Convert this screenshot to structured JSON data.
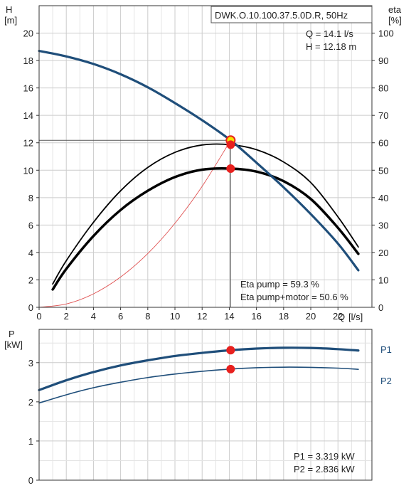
{
  "chart_data": [
    {
      "type": "line",
      "model_label": "DWK.O.10.100.37.5.0D.R, 50Hz",
      "operating_point": {
        "q_text": "Q = 14.1 l/s",
        "h_text": "H = 12.18 m",
        "q": 14.1,
        "h": 12.18
      },
      "efficiency_text": {
        "pump": "Eta pump = 59.3 %",
        "pump_motor": "Eta pump+motor = 50.6 %"
      },
      "xlabel": "Q",
      "xunit": "[l/s]",
      "ylabel": "H",
      "yunit": "[m]",
      "y2label": "eta",
      "y2unit": "[%]",
      "xlim": [
        0,
        24.5
      ],
      "ylim": [
        0,
        22
      ],
      "y2lim": [
        0,
        110
      ],
      "x_ticks": [
        0,
        2,
        4,
        6,
        8,
        10,
        12,
        14,
        16,
        18,
        20,
        22
      ],
      "y_ticks": [
        0,
        2,
        4,
        6,
        8,
        10,
        12,
        14,
        16,
        18,
        20
      ],
      "y2_ticks": [
        0,
        10,
        20,
        30,
        40,
        50,
        60,
        70,
        80,
        90,
        100
      ],
      "grid": true,
      "series": [
        {
          "key": "head",
          "axis": "left",
          "color": "#1f4e7a",
          "x": [
            0,
            2,
            4,
            6,
            8,
            10,
            12,
            14.1,
            16,
            18,
            20,
            22,
            23.5
          ],
          "y": [
            18.7,
            18.3,
            17.75,
            17.0,
            16.05,
            14.9,
            13.65,
            12.18,
            10.55,
            8.75,
            6.8,
            4.65,
            2.7
          ]
        },
        {
          "key": "eta_pump",
          "axis": "right",
          "color": "#000000",
          "x": [
            1,
            2,
            4,
            6,
            8,
            10,
            12,
            14.1,
            16,
            18,
            20,
            22,
            23.5
          ],
          "y": [
            8.5,
            17,
            31,
            42.5,
            51,
            56.5,
            59.2,
            59.3,
            57.5,
            53,
            45.5,
            33,
            22
          ]
        },
        {
          "key": "eta_pump_motor",
          "axis": "right",
          "color": "#000000",
          "x": [
            1,
            2,
            4,
            6,
            8,
            10,
            12,
            14.1,
            16,
            18,
            20,
            22,
            23.5
          ],
          "y": [
            6.5,
            14,
            26,
            35.5,
            42.5,
            47.5,
            50.2,
            50.6,
            49.5,
            46,
            39.5,
            29,
            19.5
          ]
        },
        {
          "key": "system_curve",
          "axis": "left",
          "color": "#e05050",
          "x": [
            0,
            2,
            4,
            6,
            8,
            10,
            12,
            14.1
          ],
          "y": [
            0,
            0.24,
            0.98,
            2.21,
            3.92,
            6.13,
            8.82,
            12.18
          ]
        }
      ],
      "markers": [
        {
          "series": "head",
          "x": 14.1,
          "y": 12.18,
          "style": "yellow"
        },
        {
          "series": "eta_pump",
          "x": 14.1,
          "y": 59.3,
          "style": "red"
        },
        {
          "series": "eta_pump_motor",
          "x": 14.1,
          "y": 50.6,
          "style": "red"
        }
      ]
    },
    {
      "type": "line",
      "ylabel": "P",
      "yunit": "[kW]",
      "xlim": [
        0,
        24.5
      ],
      "ylim": [
        0,
        3.85
      ],
      "y_ticks": [
        0,
        1,
        2,
        3
      ],
      "grid": true,
      "series": [
        {
          "name": "P1",
          "color": "#1f4e7a",
          "x": [
            0,
            2,
            4,
            6,
            8,
            10,
            12,
            14.1,
            16,
            18,
            20,
            22,
            23.5
          ],
          "y": [
            2.3,
            2.55,
            2.76,
            2.93,
            3.06,
            3.17,
            3.25,
            3.319,
            3.36,
            3.38,
            3.375,
            3.345,
            3.31
          ]
        },
        {
          "name": "P2",
          "color": "#1f4e7a",
          "x": [
            0,
            2,
            4,
            6,
            8,
            10,
            12,
            14.1,
            16,
            18,
            20,
            22,
            23.5
          ],
          "y": [
            1.97,
            2.18,
            2.36,
            2.5,
            2.62,
            2.71,
            2.78,
            2.836,
            2.87,
            2.885,
            2.88,
            2.86,
            2.83
          ]
        }
      ],
      "markers": [
        {
          "series": "P1",
          "x": 14.1,
          "y": 3.319,
          "style": "red"
        },
        {
          "series": "P2",
          "x": 14.1,
          "y": 2.836,
          "style": "red"
        }
      ],
      "readout": {
        "p1_text": "P1 = 3.319 kW",
        "p2_text": "P2 = 2.836 kW"
      }
    }
  ]
}
